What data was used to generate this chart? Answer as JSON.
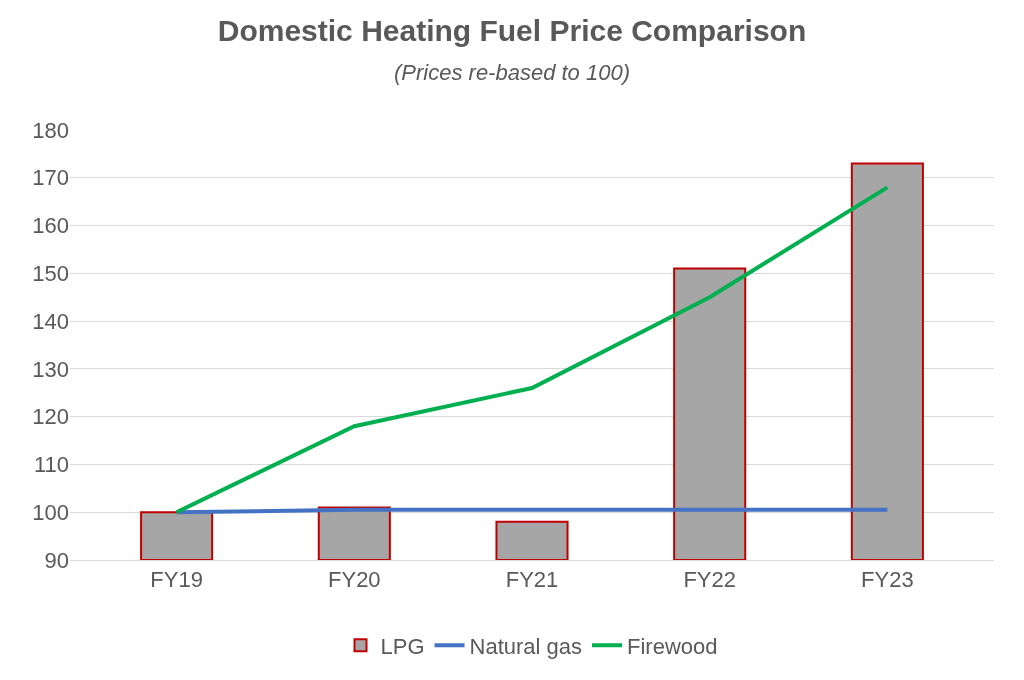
{
  "chart_data": {
    "type": "bar",
    "title": "Domestic Heating Fuel Price Comparison",
    "subtitle": "(Prices re-based to 100)",
    "categories": [
      "FY19",
      "FY20",
      "FY21",
      "FY22",
      "FY23"
    ],
    "series": [
      {
        "name": "LPG",
        "color": "#a6a6a6",
        "values": [
          100,
          101,
          98,
          151,
          173
        ]
      },
      {
        "name": "Natural gas",
        "type": "line",
        "color": "#4472c4",
        "values": [
          100,
          100.5,
          100.5,
          100.5,
          100.5
        ]
      },
      {
        "name": "Firewood",
        "type": "line",
        "color": "#00b050",
        "values": [
          100,
          118,
          126,
          145,
          168
        ]
      }
    ],
    "ylim": [
      90,
      180
    ],
    "yticks": [
      90,
      100,
      110,
      120,
      130,
      140,
      150,
      160,
      170,
      180
    ],
    "grid": "y",
    "legend": "bottom",
    "marker": "none"
  }
}
